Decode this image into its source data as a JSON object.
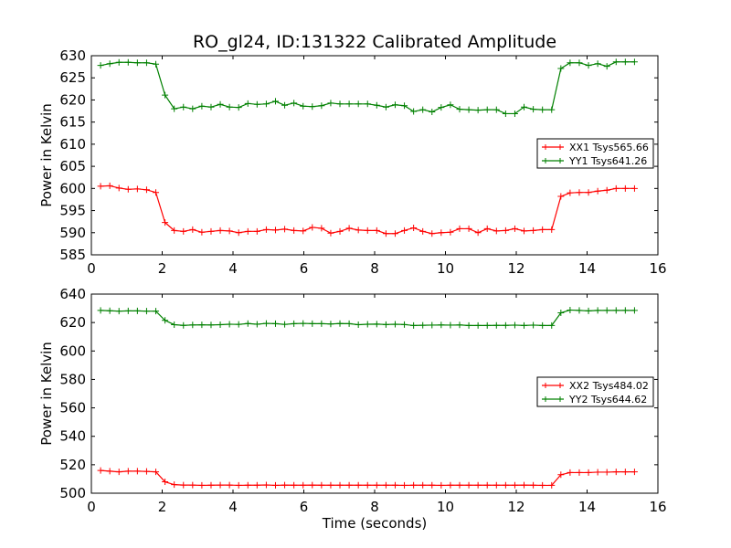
{
  "title": "RO_gl24, ID:131322 Calibrated Amplitude",
  "colors": {
    "xx": "#ff0000",
    "yy": "#008000",
    "axes": "#000000",
    "background": "#ffffff"
  },
  "chart_data": [
    {
      "type": "line",
      "title": "RO_gl24, ID:131322 Calibrated Amplitude",
      "xlabel": "",
      "ylabel": "Power in Kelvin",
      "xlim": [
        0,
        16
      ],
      "ylim": [
        585,
        630
      ],
      "xticks": [
        0,
        2,
        4,
        6,
        8,
        10,
        12,
        14,
        16
      ],
      "yticks": [
        585,
        590,
        595,
        600,
        605,
        610,
        615,
        620,
        625,
        630
      ],
      "grid": false,
      "legend_position": "right",
      "marker": "plus",
      "x": [
        0.26,
        0.52,
        0.78,
        1.04,
        1.3,
        1.56,
        1.82,
        2.08,
        2.34,
        2.6,
        2.86,
        3.12,
        3.38,
        3.64,
        3.9,
        4.16,
        4.42,
        4.68,
        4.94,
        5.2,
        5.46,
        5.72,
        5.98,
        6.24,
        6.5,
        6.76,
        7.02,
        7.28,
        7.54,
        7.8,
        8.06,
        8.32,
        8.58,
        8.84,
        9.1,
        9.36,
        9.62,
        9.88,
        10.14,
        10.4,
        10.66,
        10.92,
        11.18,
        11.44,
        11.7,
        11.96,
        12.22,
        12.48,
        12.74,
        13.0,
        13.26,
        13.52,
        13.78,
        14.04,
        14.3,
        14.56,
        14.82,
        15.08,
        15.34
      ],
      "series": [
        {
          "name": "XX1 Tsys565.66",
          "color": "#ff0000",
          "values": [
            600.5,
            600.6,
            600.1,
            599.8,
            599.9,
            599.7,
            599.1,
            592.3,
            590.5,
            590.3,
            590.7,
            590.1,
            590.3,
            590.5,
            590.4,
            590.0,
            590.3,
            590.3,
            590.7,
            590.6,
            590.8,
            590.5,
            590.4,
            591.2,
            591.0,
            589.9,
            590.3,
            591.0,
            590.6,
            590.5,
            590.5,
            589.8,
            589.8,
            590.5,
            591.1,
            590.3,
            589.8,
            590.0,
            590.1,
            590.9,
            590.9,
            590.0,
            590.9,
            590.4,
            590.5,
            590.9,
            590.4,
            590.5,
            590.7,
            590.7,
            598.2,
            599.0,
            599.1,
            599.1,
            599.4,
            599.6,
            600.0,
            600.0,
            600.0
          ]
        },
        {
          "name": "YY1 Tsys641.26",
          "color": "#008000",
          "values": [
            627.8,
            628.2,
            628.5,
            628.5,
            628.4,
            628.4,
            628.1,
            621.1,
            618.0,
            618.4,
            618.0,
            618.6,
            618.4,
            619.0,
            618.4,
            618.3,
            619.2,
            619.0,
            619.1,
            619.7,
            618.8,
            619.3,
            618.6,
            618.5,
            618.7,
            619.3,
            619.1,
            619.1,
            619.1,
            619.1,
            618.8,
            618.4,
            618.9,
            618.7,
            617.4,
            617.8,
            617.3,
            618.3,
            618.9,
            617.9,
            617.8,
            617.7,
            617.8,
            617.8,
            616.9,
            616.9,
            618.4,
            617.9,
            617.8,
            617.8,
            627.1,
            628.4,
            628.4,
            627.8,
            628.2,
            627.6,
            628.6,
            628.6,
            628.6
          ]
        }
      ]
    },
    {
      "type": "line",
      "title": "",
      "xlabel": "Time (seconds)",
      "ylabel": "Power in Kelvin",
      "xlim": [
        0,
        16
      ],
      "ylim": [
        500,
        640
      ],
      "xticks": [
        0,
        2,
        4,
        6,
        8,
        10,
        12,
        14,
        16
      ],
      "yticks": [
        500,
        520,
        540,
        560,
        580,
        600,
        620,
        640
      ],
      "grid": false,
      "legend_position": "right",
      "marker": "plus",
      "x": [
        0.26,
        0.52,
        0.78,
        1.04,
        1.3,
        1.56,
        1.82,
        2.08,
        2.34,
        2.6,
        2.86,
        3.12,
        3.38,
        3.64,
        3.9,
        4.16,
        4.42,
        4.68,
        4.94,
        5.2,
        5.46,
        5.72,
        5.98,
        6.24,
        6.5,
        6.76,
        7.02,
        7.28,
        7.54,
        7.8,
        8.06,
        8.32,
        8.58,
        8.84,
        9.1,
        9.36,
        9.62,
        9.88,
        10.14,
        10.4,
        10.66,
        10.92,
        11.18,
        11.44,
        11.7,
        11.96,
        12.22,
        12.48,
        12.74,
        13.0,
        13.26,
        13.52,
        13.78,
        14.04,
        14.3,
        14.56,
        14.82,
        15.08,
        15.34
      ],
      "series": [
        {
          "name": "XX2 Tsys484.02",
          "color": "#ff0000",
          "values": [
            516.0,
            515.5,
            515.0,
            515.5,
            515.5,
            515.3,
            515.0,
            508.0,
            506.0,
            505.7,
            505.7,
            505.5,
            505.6,
            505.7,
            505.7,
            505.5,
            505.6,
            505.6,
            505.8,
            505.5,
            505.7,
            505.6,
            505.6,
            505.7,
            505.6,
            505.6,
            505.6,
            505.6,
            505.6,
            505.6,
            505.6,
            505.6,
            505.6,
            505.5,
            505.6,
            505.6,
            505.6,
            505.5,
            505.6,
            505.6,
            505.6,
            505.6,
            505.6,
            505.6,
            505.6,
            505.6,
            505.7,
            505.6,
            505.5,
            505.5,
            513.0,
            514.5,
            514.5,
            514.5,
            514.8,
            514.8,
            515.0,
            515.0,
            515.0
          ]
        },
        {
          "name": "YY2 Tsys644.62",
          "color": "#008000",
          "values": [
            628.5,
            628.3,
            628.0,
            628.2,
            628.2,
            628.0,
            628.0,
            621.5,
            618.5,
            618.0,
            618.3,
            618.4,
            618.3,
            618.5,
            618.8,
            618.7,
            619.3,
            618.8,
            619.4,
            619.2,
            618.7,
            619.2,
            619.4,
            619.2,
            619.2,
            619.0,
            619.3,
            619.2,
            618.5,
            618.8,
            618.9,
            618.6,
            618.8,
            618.6,
            617.9,
            618.1,
            618.2,
            618.3,
            618.2,
            618.3,
            617.9,
            617.9,
            617.9,
            618.0,
            618.0,
            618.2,
            617.9,
            618.2,
            617.9,
            617.9,
            626.8,
            628.8,
            628.5,
            628.2,
            628.5,
            628.5,
            628.5,
            628.5,
            628.5
          ]
        }
      ]
    }
  ]
}
